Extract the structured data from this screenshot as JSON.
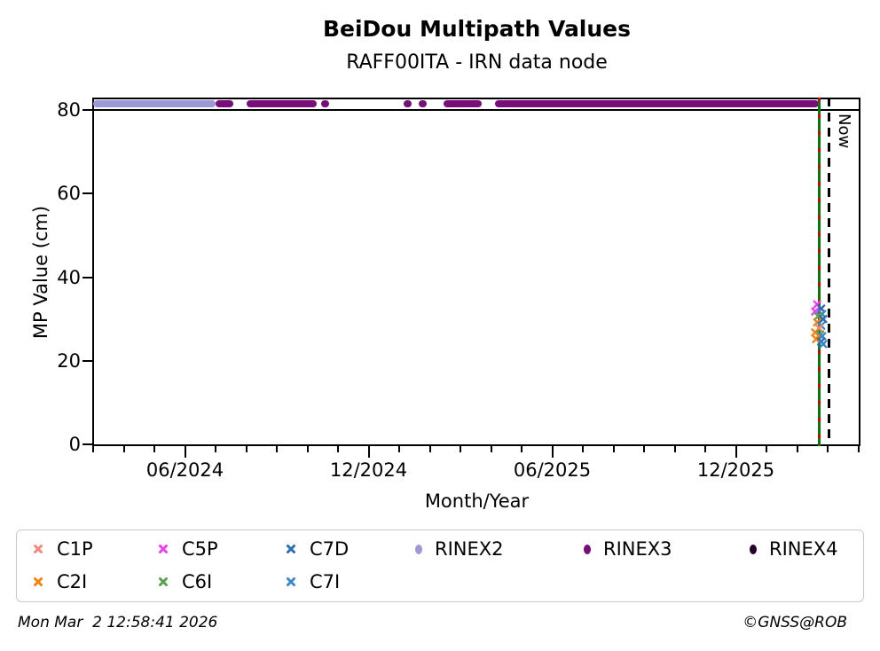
{
  "header": {
    "title": "BeiDou Multipath Values",
    "subtitle": "RAFF00ITA - IRN data node"
  },
  "footer": {
    "timestamp": "Mon Mar  2 12:58:41 2026",
    "credit": "©GNSS@ROB"
  },
  "chart_data": {
    "type": "scatter",
    "title": "BeiDou Multipath Values",
    "subtitle": "RAFF00ITA - IRN data node",
    "xlabel": "Month/Year",
    "ylabel": "MP Value (cm)",
    "ylim": [
      0,
      83
    ],
    "xlim": [
      "2024-03-01",
      "2026-04-03"
    ],
    "grid": false,
    "y_ticks": [
      0,
      20,
      40,
      60,
      80
    ],
    "x_major_ticks": [
      {
        "date": "2024-06-01",
        "label": "06/2024"
      },
      {
        "date": "2024-12-01",
        "label": "12/2024"
      },
      {
        "date": "2025-06-01",
        "label": "06/2025"
      },
      {
        "date": "2025-12-01",
        "label": "12/2025"
      }
    ],
    "x_minor_ticks": [
      "2024-03-01",
      "2024-04-01",
      "2024-05-01",
      "2024-07-01",
      "2024-08-01",
      "2024-09-01",
      "2024-10-01",
      "2024-11-01",
      "2025-01-01",
      "2025-02-01",
      "2025-03-01",
      "2025-04-01",
      "2025-05-01",
      "2025-07-01",
      "2025-08-01",
      "2025-09-01",
      "2025-10-01",
      "2025-11-01",
      "2026-01-01",
      "2026-02-01",
      "2026-03-01",
      "2026-04-01"
    ],
    "cap_line_y": 80,
    "availability_value": 81.5,
    "availability_segments": [
      {
        "series": "RINEX2",
        "start": "2024-03-01",
        "end": "2024-07-01"
      },
      {
        "series": "RINEX3",
        "start": "2024-07-01",
        "end": "2024-07-19"
      },
      {
        "series": "RINEX3",
        "start": "2024-08-01",
        "end": "2024-10-10"
      },
      {
        "series": "RINEX3",
        "start": "2024-10-15",
        "end": "2024-10-23"
      },
      {
        "series": "RINEX3",
        "start": "2025-01-05",
        "end": "2025-01-10"
      },
      {
        "series": "RINEX3",
        "start": "2025-01-20",
        "end": "2025-01-25"
      },
      {
        "series": "RINEX3",
        "start": "2025-02-15",
        "end": "2025-03-22"
      },
      {
        "series": "RINEX3",
        "start": "2025-04-05",
        "end": "2026-02-23"
      }
    ],
    "scatter_points": [
      {
        "series": "C5P",
        "date": "2026-02-21",
        "value": 33.5
      },
      {
        "series": "C7D",
        "date": "2026-02-25",
        "value": 32.5
      },
      {
        "series": "C5P",
        "date": "2026-02-19",
        "value": 31.8
      },
      {
        "series": "C7I",
        "date": "2026-02-26",
        "value": 31.2
      },
      {
        "series": "C6I",
        "date": "2026-02-22",
        "value": 30.7
      },
      {
        "series": "C7D",
        "date": "2026-02-27",
        "value": 30.0
      },
      {
        "series": "C2I",
        "date": "2026-02-21",
        "value": 29.2
      },
      {
        "series": "C7I",
        "date": "2026-02-25",
        "value": 28.4
      },
      {
        "series": "C1P",
        "date": "2026-02-23",
        "value": 27.8
      },
      {
        "series": "C2I",
        "date": "2026-02-19",
        "value": 26.8
      },
      {
        "series": "C6I",
        "date": "2026-02-24",
        "value": 26.3
      },
      {
        "series": "C7I",
        "date": "2026-02-26",
        "value": 25.9
      },
      {
        "series": "C2I",
        "date": "2026-02-20",
        "value": 25.2
      },
      {
        "series": "C7D",
        "date": "2026-02-25",
        "value": 24.6
      },
      {
        "series": "C7I",
        "date": "2026-02-27",
        "value": 24.0
      }
    ],
    "vlines": [
      {
        "name": "latest-data-line",
        "date": "2026-02-23",
        "style": "green-red-dashed",
        "label": ""
      },
      {
        "name": "now-line",
        "date": "2026-03-02",
        "style": "black-dashed",
        "label": "Now"
      }
    ],
    "series_colors": {
      "C1P": "#f2897c",
      "C2I": "#f5810c",
      "C5P": "#ee3cf0",
      "C6I": "#5aa053",
      "C7D": "#2a6cb0",
      "C7I": "#3c87c8",
      "RINEX2": "#9b9ad6",
      "RINEX3": "#780d7b",
      "RINEX4": "#270230"
    },
    "legend": {
      "rows": [
        [
          "C1P",
          "C5P",
          "C7D",
          "RINEX2",
          "RINEX3",
          "RINEX4"
        ],
        [
          "C2I",
          "C6I",
          "C7I"
        ]
      ],
      "marker_shapes": {
        "C1P": "x",
        "C2I": "x",
        "C5P": "x",
        "C6I": "x",
        "C7D": "x",
        "C7I": "x",
        "RINEX2": "circle",
        "RINEX3": "circle",
        "RINEX4": "circle"
      }
    },
    "accent_colors": {
      "latest_line_green": "#067806",
      "latest_line_red": "#d40000",
      "now_line": "#000000"
    }
  }
}
